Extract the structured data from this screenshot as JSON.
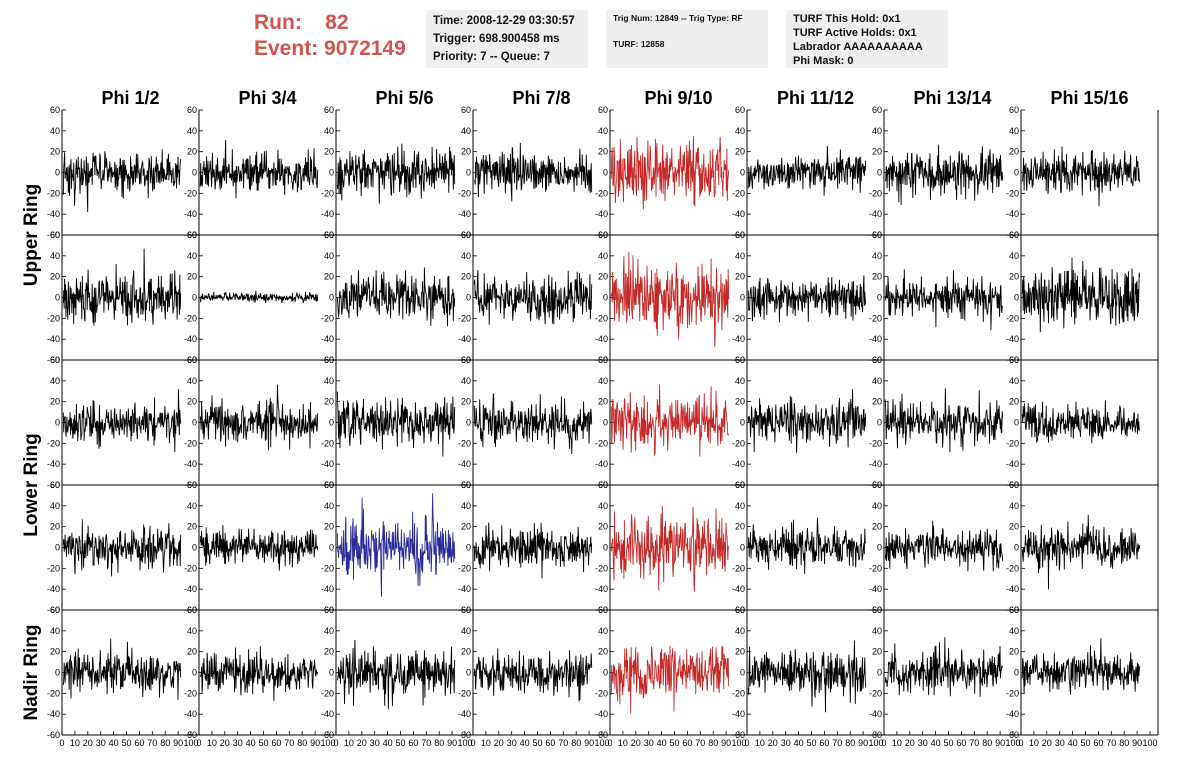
{
  "header": {
    "run_label": "Run:",
    "run_value": "82",
    "event_label": "Event:",
    "event_value": "9072149"
  },
  "info_time": {
    "time": "Time: 2008-12-29 03:30:57",
    "trigger": "Trigger: 698.900458 ms",
    "priority": "Priority: 7 -- Queue: 7"
  },
  "info_trig": {
    "trig": "Trig Num: 12849 -- Trig Type: RF",
    "turf": "TURF: 12858"
  },
  "info_turf": {
    "hold": "TURF This Hold: 0x1",
    "active": "TURF Active Holds: 0x1",
    "labrador": "Labrador AAAAAAAAAA",
    "phimask": "Phi Mask: 0"
  },
  "colors": {
    "normal_trace": "#000000",
    "triggered_phi_trace": "#c62828",
    "highlight_trace": "#2a2a9a",
    "header_text": "#d0534f",
    "info_box_bg": "#efefef"
  },
  "chart_data": {
    "type": "line",
    "columns": [
      "Phi 1/2",
      "Phi 3/4",
      "Phi 5/6",
      "Phi 7/8",
      "Phi 9/10",
      "Phi 11/12",
      "Phi 13/14",
      "Phi 15/16"
    ],
    "rows": [
      "Upper Ring",
      "Lower Ring",
      "Nadir Ring"
    ],
    "panel_rows": 5,
    "row_title_spans": [
      [
        0,
        1
      ],
      [
        2,
        3
      ],
      [
        4,
        4
      ]
    ],
    "xlim": [
      0,
      100
    ],
    "ylim": [
      -60,
      60
    ],
    "x_ticks": [
      0,
      10,
      20,
      30,
      40,
      50,
      60,
      70,
      80,
      90,
      100
    ],
    "y_ticks": [
      -60,
      -40,
      -20,
      0,
      20,
      40,
      60
    ],
    "panels": [
      {
        "row": 0,
        "col": 0,
        "amp": 11,
        "color": "normal",
        "seed": 11
      },
      {
        "row": 0,
        "col": 1,
        "amp": 10,
        "color": "normal",
        "seed": 12
      },
      {
        "row": 0,
        "col": 2,
        "amp": 12,
        "color": "normal",
        "seed": 13
      },
      {
        "row": 0,
        "col": 3,
        "amp": 11,
        "color": "normal",
        "seed": 14
      },
      {
        "row": 0,
        "col": 4,
        "amp": 17,
        "color": "red",
        "seed": 15
      },
      {
        "row": 0,
        "col": 5,
        "amp": 10,
        "color": "normal",
        "seed": 16
      },
      {
        "row": 0,
        "col": 6,
        "amp": 12,
        "color": "normal",
        "seed": 17
      },
      {
        "row": 0,
        "col": 7,
        "amp": 12,
        "color": "normal",
        "seed": 18
      },
      {
        "row": 1,
        "col": 0,
        "amp": 15,
        "color": "normal",
        "seed": 21
      },
      {
        "row": 1,
        "col": 1,
        "amp": 2.5,
        "color": "normal",
        "seed": 22
      },
      {
        "row": 1,
        "col": 2,
        "amp": 13,
        "color": "normal",
        "seed": 23
      },
      {
        "row": 1,
        "col": 3,
        "amp": 13,
        "color": "normal",
        "seed": 24
      },
      {
        "row": 1,
        "col": 4,
        "amp": 18,
        "color": "red",
        "seed": 25
      },
      {
        "row": 1,
        "col": 5,
        "amp": 11,
        "color": "normal",
        "seed": 26
      },
      {
        "row": 1,
        "col": 6,
        "amp": 11,
        "color": "normal",
        "seed": 27
      },
      {
        "row": 1,
        "col": 7,
        "amp": 16,
        "color": "normal",
        "seed": 28
      },
      {
        "row": 2,
        "col": 0,
        "amp": 11,
        "color": "normal",
        "seed": 31
      },
      {
        "row": 2,
        "col": 1,
        "amp": 12,
        "color": "normal",
        "seed": 32
      },
      {
        "row": 2,
        "col": 2,
        "amp": 13,
        "color": "normal",
        "seed": 33
      },
      {
        "row": 2,
        "col": 3,
        "amp": 12,
        "color": "normal",
        "seed": 34
      },
      {
        "row": 2,
        "col": 4,
        "amp": 15,
        "color": "red",
        "seed": 35
      },
      {
        "row": 2,
        "col": 5,
        "amp": 12,
        "color": "normal",
        "seed": 36
      },
      {
        "row": 2,
        "col": 6,
        "amp": 12,
        "color": "normal",
        "seed": 37
      },
      {
        "row": 2,
        "col": 7,
        "amp": 10,
        "color": "normal",
        "seed": 38
      },
      {
        "row": 3,
        "col": 0,
        "amp": 12,
        "color": "normal",
        "seed": 41
      },
      {
        "row": 3,
        "col": 1,
        "amp": 10,
        "color": "normal",
        "seed": 42
      },
      {
        "row": 3,
        "col": 2,
        "amp": 17,
        "color": "blue",
        "seed": 43
      },
      {
        "row": 3,
        "col": 3,
        "amp": 12,
        "color": "normal",
        "seed": 44
      },
      {
        "row": 3,
        "col": 4,
        "amp": 17,
        "color": "red",
        "seed": 45
      },
      {
        "row": 3,
        "col": 5,
        "amp": 11,
        "color": "normal",
        "seed": 46
      },
      {
        "row": 3,
        "col": 6,
        "amp": 10,
        "color": "normal",
        "seed": 47
      },
      {
        "row": 3,
        "col": 7,
        "amp": 12,
        "color": "normal",
        "seed": 48
      },
      {
        "row": 4,
        "col": 0,
        "amp": 12,
        "color": "normal",
        "seed": 51
      },
      {
        "row": 4,
        "col": 1,
        "amp": 11,
        "color": "normal",
        "seed": 52
      },
      {
        "row": 4,
        "col": 2,
        "amp": 12,
        "color": "normal",
        "seed": 53
      },
      {
        "row": 4,
        "col": 3,
        "amp": 12,
        "color": "normal",
        "seed": 54
      },
      {
        "row": 4,
        "col": 4,
        "amp": 15,
        "color": "red",
        "seed": 55
      },
      {
        "row": 4,
        "col": 5,
        "amp": 13,
        "color": "normal",
        "seed": 56
      },
      {
        "row": 4,
        "col": 6,
        "amp": 12,
        "color": "normal",
        "seed": 57
      },
      {
        "row": 4,
        "col": 7,
        "amp": 11,
        "color": "normal",
        "seed": 58
      }
    ]
  }
}
